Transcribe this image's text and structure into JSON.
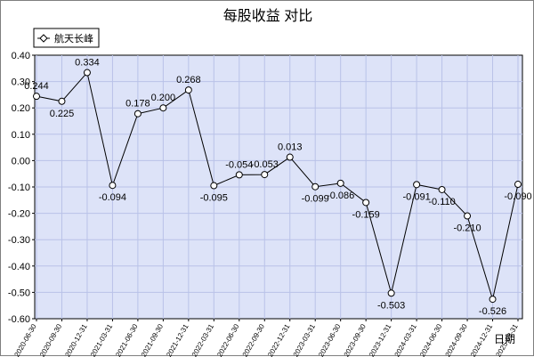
{
  "chart_data": {
    "type": "line",
    "title": "每股收益  对比",
    "xlabel": "日期",
    "ylabel": "",
    "ylim": [
      -0.6,
      0.4
    ],
    "yticks": [
      0.4,
      0.3,
      0.2,
      0.1,
      0.0,
      -0.1,
      -0.2,
      -0.3,
      -0.4,
      -0.5,
      -0.6
    ],
    "ytick_labels": [
      "0.40",
      "0.30",
      "0.20",
      "0.10",
      "0.00",
      "-0.10",
      "-0.20",
      "-0.30",
      "-0.40",
      "-0.50",
      "-0.60"
    ],
    "grid": true,
    "legend": "top-left",
    "categories": [
      "2020-06-30",
      "2020-09-30",
      "2020-12-31",
      "2021-03-31",
      "2021-06-30",
      "2021-09-30",
      "2021-12-31",
      "2022-03-31",
      "2022-06-30",
      "2022-09-30",
      "2022-12-31",
      "2023-03-31",
      "2023-06-30",
      "2023-09-30",
      "2023-12-31",
      "2024-03-31",
      "2024-06-30",
      "2024-09-30",
      "2024-12-31",
      "2025-03-31"
    ],
    "series": [
      {
        "name": "航天长峰",
        "values": [
          0.244,
          0.225,
          0.334,
          -0.094,
          0.178,
          0.2,
          0.268,
          -0.095,
          -0.054,
          -0.053,
          0.013,
          -0.099,
          -0.086,
          -0.159,
          -0.503,
          -0.091,
          -0.11,
          -0.21,
          -0.526,
          -0.09
        ],
        "labels": [
          "0.244",
          "0.225",
          "0.334",
          "-0.094",
          "0.178",
          "0.200",
          "0.268",
          "-0.095",
          "-0.054",
          "-0.053",
          "0.013",
          "-0.099",
          "-0.086",
          "-0.159",
          "-0.503",
          "-0.091",
          "-0.110",
          "-0.210",
          "-0.526",
          "-0.090"
        ]
      }
    ],
    "colors": {
      "plot_bg": "#dde3f8",
      "grid": "#b9c2e8",
      "line": "#000000",
      "marker_fill": "#ffffff",
      "axis_label": "#0000cc"
    }
  }
}
